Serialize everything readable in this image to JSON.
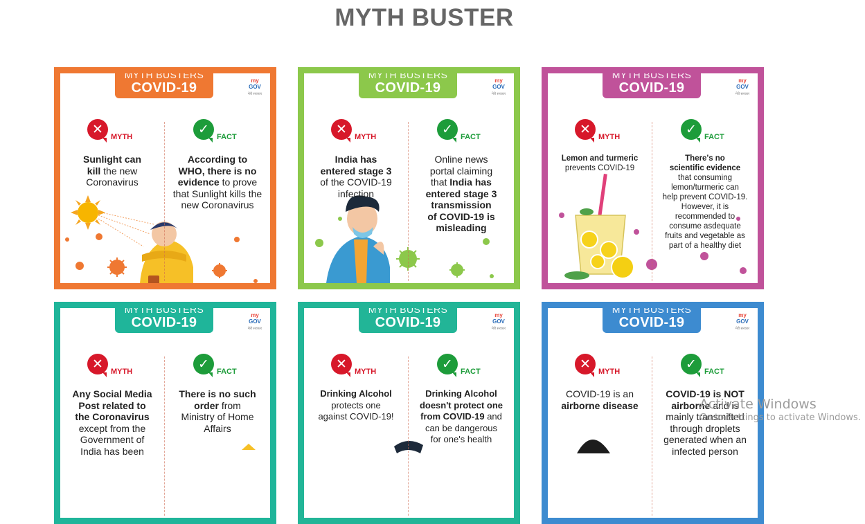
{
  "page": {
    "title": "MYTH BUSTER"
  },
  "header": {
    "top": "MYTH BUSTERS",
    "main": "COVID-19"
  },
  "logo": {
    "my": "my",
    "gov": "GOV",
    "sub": "मेरी सरकार"
  },
  "labels": {
    "myth": "MYTH",
    "fact": "FACT"
  },
  "colors": {
    "orange": "#ef7832",
    "green": "#8cc84b",
    "magenta": "#c0529a",
    "teal": "#1fb59a",
    "teal2": "#22b597",
    "blue": "#3d8bd0",
    "myth_red": "#d7182a",
    "fact_green": "#1d9c3a"
  },
  "cards": [
    {
      "myth": {
        "b1": "Sunlight can",
        "b2": "kill",
        "t2": " the new",
        "t3": "Coronavirus"
      },
      "fact": {
        "b1": "According to",
        "b2": "WHO, there is no",
        "b3": "evidence",
        "t3": " to prove",
        "t4": "that Sunlight kills the",
        "t5": "new Coronavirus"
      }
    },
    {
      "myth": {
        "b1": "India has",
        "b2": "entered stage 3",
        "t3": "of the COVID-19",
        "t4": "infection"
      },
      "fact": {
        "t1": "Online news",
        "t2": "portal claiming",
        "t3a": "that ",
        "b3": "India has",
        "b4": "entered stage 3",
        "b5": "transmission",
        "b6": "of COVID-19 is",
        "b7": "misleading"
      }
    },
    {
      "myth": {
        "b1": "Lemon and turmeric",
        "t2": "prevents COVID-19"
      },
      "fact": {
        "b1": "There's no",
        "b2": "scientific evidence",
        "t3": "that consuming",
        "t4": "lemon/turmeric can",
        "t5": "help prevent COVID-19.",
        "t6": "However, it is",
        "t7": "recommended to",
        "t8": "consume asdequate",
        "t9": "fruits and vegetable as",
        "t10": "part of a healthy diet"
      }
    },
    {
      "myth": {
        "b1": "Any Social Media",
        "b2": "Post related to",
        "b3": "the Coronavirus",
        "t4": "except from the",
        "t5": "Government of",
        "t6": "India has been"
      },
      "fact": {
        "b1": "There is no such",
        "b2": "order",
        "t2": " from",
        "t3": "Ministry of Home",
        "t4": "Affairs"
      }
    },
    {
      "myth": {
        "b1": "Drinking Alcohol",
        "t2": "protects one",
        "t3": "against COVID-19!"
      },
      "fact": {
        "b1": "Drinking Alcohol",
        "b2": "doesn't protect one",
        "b3": "from COVID-19",
        "t3": " and",
        "t4": "can be dangerous",
        "t5": "for one's health"
      }
    },
    {
      "myth": {
        "t1": "COVID-19 is an",
        "b2": "airborne disease"
      },
      "fact": {
        "b1": "COVID-19 is NOT",
        "b2": "airborne",
        "t2": " and is",
        "t3": "mainly transmitted",
        "t4": "through droplets",
        "t5": "generated when an",
        "t6": "infected person"
      }
    }
  ],
  "watermark": {
    "title": "Activate Windows",
    "sub": "Go to Settings to activate Windows."
  }
}
